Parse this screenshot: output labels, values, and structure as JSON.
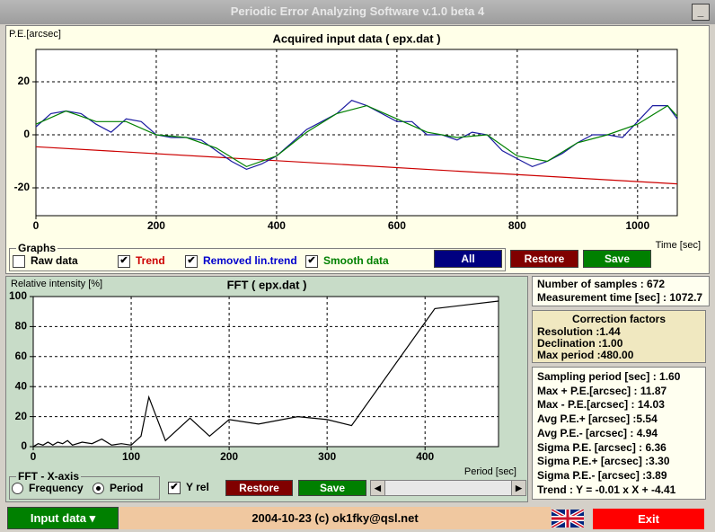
{
  "window": {
    "title": "Periodic Error Analyzing Software v.1.0 beta 4"
  },
  "chart_data": [
    {
      "type": "line",
      "title": "Acquired input data ( epx.dat )",
      "ylabel": "P.E.[arcsec]",
      "xlabel": "Time [sec]",
      "xlim": [
        0,
        1066
      ],
      "ylim": [
        -30.5,
        32.2
      ],
      "xticks": [
        0,
        200,
        400,
        600,
        800,
        1000
      ],
      "yticks": [
        -20,
        0,
        20
      ],
      "grid": true,
      "series": [
        {
          "color": "#cc0000",
          "x": [
            0,
            1066
          ],
          "values": [
            -4.5,
            -18.5
          ]
        },
        {
          "color": "#1a1aa0",
          "x": [
            0,
            25,
            50,
            75,
            100,
            125,
            150,
            175,
            200,
            225,
            250,
            275,
            300,
            325,
            350,
            375,
            400,
            425,
            450,
            475,
            500,
            525,
            550,
            575,
            600,
            625,
            650,
            675,
            700,
            725,
            750,
            775,
            800,
            825,
            850,
            875,
            900,
            925,
            950,
            975,
            1000,
            1025,
            1050,
            1066
          ],
          "values": [
            3,
            8,
            9,
            8,
            4,
            1,
            6,
            5,
            0,
            -1,
            -1,
            -2,
            -6,
            -10,
            -13,
            -11,
            -8,
            -3,
            2,
            5,
            8,
            13,
            11,
            8,
            5,
            5,
            0,
            0,
            -2,
            1,
            0,
            -6,
            -9,
            -12,
            -10,
            -7,
            -3,
            0,
            0,
            -1,
            5,
            11,
            11,
            6
          ]
        },
        {
          "color": "#008000",
          "x": [
            0,
            50,
            100,
            150,
            200,
            250,
            300,
            350,
            400,
            450,
            500,
            550,
            600,
            650,
            700,
            750,
            800,
            850,
            900,
            950,
            1000,
            1050,
            1066
          ],
          "values": [
            4,
            9,
            5,
            5,
            0,
            -1,
            -5,
            -12,
            -8,
            1,
            8,
            11,
            6,
            1,
            -1,
            0,
            -8,
            -10,
            -3,
            0,
            4,
            11,
            7
          ]
        }
      ]
    },
    {
      "type": "line",
      "title": "FFT ( epx.dat )",
      "ylabel": "Relative intensity [%]",
      "xlabel": "Period [sec]",
      "xlim": [
        0,
        475
      ],
      "ylim": [
        0,
        100
      ],
      "xticks": [
        0,
        100,
        200,
        300,
        400
      ],
      "yticks": [
        0,
        20,
        40,
        60,
        80,
        100
      ],
      "grid": true,
      "series": [
        {
          "color": "#000000",
          "x": [
            0,
            5,
            10,
            15,
            20,
            25,
            30,
            35,
            40,
            50,
            60,
            70,
            80,
            90,
            100,
            110,
            118,
            135,
            160,
            180,
            200,
            230,
            270,
            300,
            325,
            410,
            475
          ],
          "values": [
            0,
            2,
            1,
            3,
            1,
            3,
            2,
            4,
            1,
            3,
            2,
            5,
            1,
            2,
            1,
            7,
            33,
            4,
            19,
            7,
            18,
            15,
            20,
            18,
            14,
            92,
            97
          ]
        }
      ]
    }
  ],
  "graphs": {
    "title": "Graphs",
    "options": [
      {
        "label": "Raw data",
        "checked": false,
        "color": "#000000"
      },
      {
        "label": "Trend",
        "checked": true,
        "color": "#cc0000"
      },
      {
        "label": "Removed lin.trend",
        "checked": true,
        "color": "#0000cc"
      },
      {
        "label": "Smooth data",
        "checked": true,
        "color": "#008000"
      }
    ],
    "buttons": [
      "All",
      "Restore",
      "Save"
    ]
  },
  "fft_axis": {
    "title": "FFT - X-axis",
    "options": [
      {
        "label": "Frequency",
        "selected": false
      },
      {
        "label": "Period",
        "selected": true
      }
    ],
    "yrel": {
      "label": "Y rel",
      "checked": true
    },
    "buttons": [
      "Restore",
      "Save"
    ]
  },
  "info": [
    "Number of samples : 672",
    "Measurement time [sec] : 1072.7"
  ],
  "correction": {
    "title": "Correction factors",
    "lines": [
      "Resolution :1.44",
      "Declination :1.00",
      "Max period :480.00"
    ]
  },
  "stats": [
    "Sampling period [sec] : 1.60",
    "Max + P.E.[arcsec] : 11.87",
    "Max - P.E.[arcsec] : 14.03",
    "Avg P.E.+ [arcsec] :5.54",
    "Avg P.E.- [arcsec] : 4.94",
    "Sigma P.E. [arcsec] : 6.36",
    "Sigma P.E.+ [arcsec] :3.30",
    "Sigma P.E.- [arcsec] :3.89",
    "Trend : Y = -0.01 x X + -4.41"
  ],
  "footer": {
    "input": "Input data",
    "text": "2004-10-23 (c) ok1fky@qsl.net",
    "exit": "Exit"
  }
}
